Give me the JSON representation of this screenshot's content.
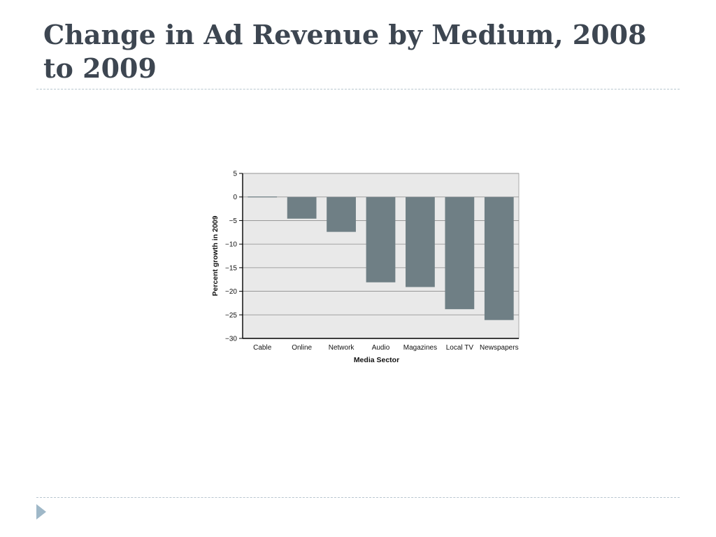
{
  "slide": {
    "title": "Change in Ad Revenue by Medium, 2008 to 2009"
  },
  "colors": {
    "title": "#3d4651",
    "bar": "#6f7f85",
    "plot_background": "#e9e9e9",
    "rule": "#b8c6cf",
    "nav_arrow": "#9fb8c8"
  },
  "nav": {
    "icon": "triangle-right-icon"
  },
  "chart_data": {
    "type": "bar",
    "categories": [
      "Cable",
      "Online",
      "Network",
      "Audio",
      "Magazines",
      "Local TV",
      "Newspapers"
    ],
    "values": [
      0.1,
      -4.6,
      -7.4,
      -18.1,
      -19.1,
      -23.8,
      -26.1
    ],
    "title": "",
    "xlabel": "Media Sector",
    "ylabel": "Percent growth in 2009",
    "ylim": [
      -30,
      5
    ],
    "yticks": [
      5,
      0,
      -5,
      -10,
      -15,
      -20,
      -25,
      -30
    ],
    "ytick_labels": [
      "5",
      "0",
      "−5",
      "−10",
      "−15",
      "−20",
      "−25",
      "−30"
    ],
    "grid": true,
    "legend": "none"
  }
}
